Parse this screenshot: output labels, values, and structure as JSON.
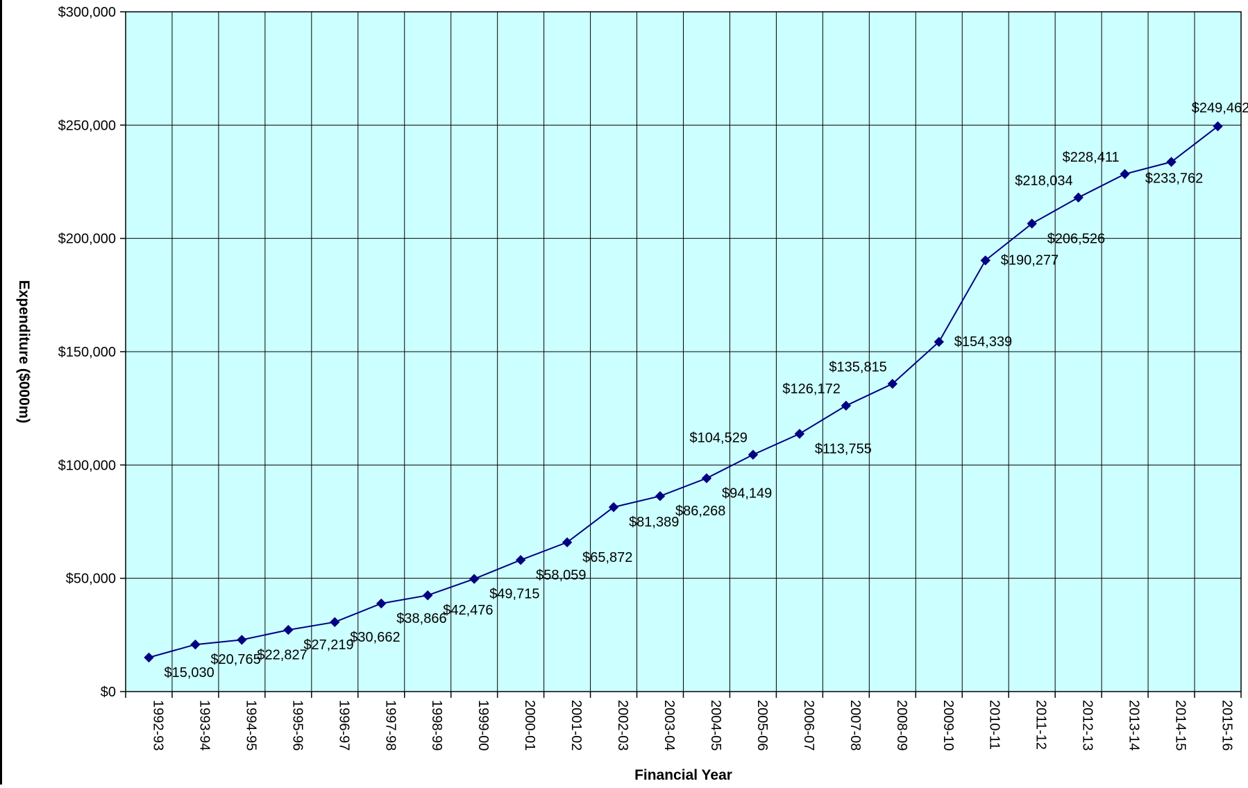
{
  "chart_data": {
    "type": "line",
    "title": "",
    "xlabel": "Financial Year",
    "ylabel": "Expenditure ($000m)",
    "ylim": [
      0,
      300000
    ],
    "yticks": [
      0,
      50000,
      100000,
      150000,
      200000,
      250000,
      300000
    ],
    "ytick_labels": [
      "$0",
      "$50,000",
      "$100,000",
      "$150,000",
      "$200,000",
      "$250,000",
      "$300,000"
    ],
    "grid": true,
    "legend": "none",
    "colors": {
      "plot_background": "#ccffff",
      "line": "#000080",
      "grid": "#000000"
    },
    "categories": [
      "1992-93",
      "1993-94",
      "1994-95",
      "1995-96",
      "1996-97",
      "1997-98",
      "1998-99",
      "1999-00",
      "2000-01",
      "2001-02",
      "2002-03",
      "2003-04",
      "2004-05",
      "2005-06",
      "2006-07",
      "2007-08",
      "2008-09",
      "2009-10",
      "2010-11",
      "2011-12",
      "2012-13",
      "2013-14",
      "2014-15",
      "2015-16"
    ],
    "values": [
      15030,
      20765,
      22827,
      27219,
      30662,
      38866,
      42476,
      49715,
      58059,
      65872,
      81389,
      86268,
      94149,
      104529,
      113755,
      126172,
      135815,
      154339,
      190277,
      206526,
      218034,
      228411,
      233762,
      249462
    ],
    "data_labels": [
      "$15,030",
      "$20,765",
      "$22,827",
      "$27,219",
      "$30,662",
      "$38,866",
      "$42,476",
      "$49,715",
      "$58,059",
      "$65,872",
      "$81,389",
      "$86,268",
      "$94,149",
      "$104,529",
      "$113,755",
      "$126,172",
      "$135,815",
      "$154,339",
      "$190,277",
      "$206,526",
      "$218,034",
      "$228,411",
      "$233,762",
      "$249,462"
    ]
  }
}
